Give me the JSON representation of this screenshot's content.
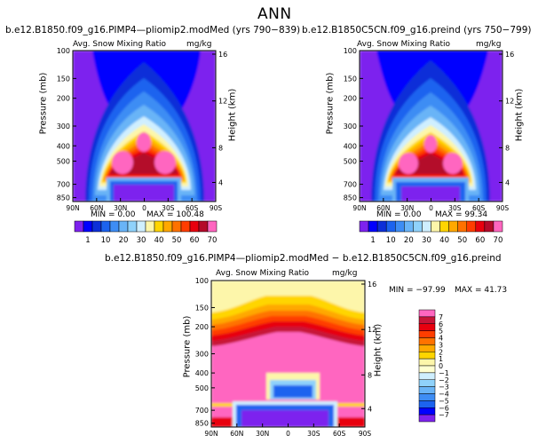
{
  "page_title": "ANN",
  "panels": [
    {
      "title": "b.e12.B1850.f09_g16.PIMP4—pliomip2.modMed  (yrs 790−839)",
      "subtitle": "Avg. Snow Mixing Ratio",
      "units": "mg/kg",
      "min_text": "MIN =    0.00",
      "max_text": "MAX = 100.48"
    },
    {
      "title": "b.e12.B1850C5CN.f09_g16.preind  (yrs 750−799)",
      "subtitle": "Avg. Snow Mixing Ratio",
      "units": "mg/kg",
      "min_text": "MIN =    0.00",
      "max_text": "MAX =  99.34"
    },
    {
      "title": "b.e12.B1850.f09_g16.PIMP4—pliomip2.modMed  −  b.e12.B1850C5CN.f09_g16.preind",
      "subtitle": "Avg. Snow Mixing Ratio",
      "units": "mg/kg",
      "min_text": "MIN = −97.99",
      "max_text": "MAX =  41.73"
    }
  ],
  "axes": {
    "ylabel": "Pressure (mb)",
    "y2label": "Height (km)",
    "x_ticks": [
      "90N",
      "60N",
      "30N",
      "0",
      "30S",
      "60S",
      "90S"
    ],
    "p_ticks": [
      "100",
      "150",
      "200",
      "300",
      "400",
      "500",
      "700",
      "850"
    ],
    "z_ticks": [
      "16",
      "12",
      "8",
      "4"
    ]
  },
  "colorbar_abs": {
    "labels": [
      "1",
      "10",
      "20",
      "30",
      "40",
      "50",
      "60",
      "70"
    ],
    "colors": [
      "#7d22ee",
      "#0000ff",
      "#0d2fd8",
      "#1c63ef",
      "#3e8df4",
      "#69b4f7",
      "#8fd2fb",
      "#cfefff",
      "#fdf6aa",
      "#ffd500",
      "#ffa800",
      "#ff7200",
      "#ff3d00",
      "#e8000e",
      "#b40a2a",
      "#ff66c0"
    ]
  },
  "colorbar_diff": {
    "labels": [
      "7",
      "6",
      "5",
      "4",
      "3",
      "2",
      "1",
      "0",
      "−1",
      "−2",
      "−3",
      "−4",
      "−5",
      "−6",
      "−7"
    ],
    "colors": [
      "#ff66c0",
      "#c81437",
      "#e8000e",
      "#ff3d00",
      "#ff7200",
      "#ffa800",
      "#ffd500",
      "#fdf6aa",
      "#ffffd0",
      "#cfefff",
      "#8fd2fb",
      "#69b4f7",
      "#3e8df4",
      "#1c63ef",
      "#0000ff",
      "#7d22ee"
    ]
  },
  "chart_data": [
    {
      "type": "heatmap",
      "title": "b.e12.B1850.f09_g16.PIMP4—pliomip2.modMed  (yrs 790−839)",
      "subtitle": "Avg. Snow Mixing Ratio",
      "units": "mg/kg",
      "xlabel": "",
      "ylabel": "Pressure (mb)",
      "y2label": "Height (km)",
      "x_ticks": [
        "90N",
        "60N",
        "30N",
        "0",
        "30S",
        "60S",
        "90S"
      ],
      "y_ticks": [
        100,
        150,
        200,
        300,
        400,
        500,
        700,
        850
      ],
      "y2_ticks": [
        16,
        12,
        8,
        4
      ],
      "min": 0.0,
      "max": 100.48,
      "levels": [
        1,
        10,
        20,
        30,
        40,
        50,
        60,
        70
      ]
    },
    {
      "type": "heatmap",
      "title": "b.e12.B1850C5CN.f09_g16.preind  (yrs 750−799)",
      "subtitle": "Avg. Snow Mixing Ratio",
      "units": "mg/kg",
      "xlabel": "",
      "ylabel": "Pressure (mb)",
      "y2label": "Height (km)",
      "x_ticks": [
        "90N",
        "60N",
        "30N",
        "0",
        "30S",
        "60S",
        "90S"
      ],
      "y_ticks": [
        100,
        150,
        200,
        300,
        400,
        500,
        700,
        850
      ],
      "y2_ticks": [
        16,
        12,
        8,
        4
      ],
      "min": 0.0,
      "max": 99.34,
      "levels": [
        1,
        10,
        20,
        30,
        40,
        50,
        60,
        70
      ]
    },
    {
      "type": "heatmap",
      "title": "b.e12.B1850.f09_g16.PIMP4—pliomip2.modMed  −  b.e12.B1850C5CN.f09_g16.preind",
      "subtitle": "Avg. Snow Mixing Ratio",
      "units": "mg/kg",
      "xlabel": "",
      "ylabel": "Pressure (mb)",
      "y2label": "Height (km)",
      "x_ticks": [
        "90N",
        "60N",
        "30N",
        "0",
        "30S",
        "60S",
        "90S"
      ],
      "y_ticks": [
        100,
        150,
        200,
        300,
        400,
        500,
        700,
        850
      ],
      "y2_ticks": [
        16,
        12,
        8,
        4
      ],
      "min": -97.99,
      "max": 41.73,
      "levels": [
        -7,
        -6,
        -5,
        -4,
        -3,
        -2,
        -1,
        0,
        1,
        2,
        3,
        4,
        5,
        6,
        7
      ]
    }
  ]
}
